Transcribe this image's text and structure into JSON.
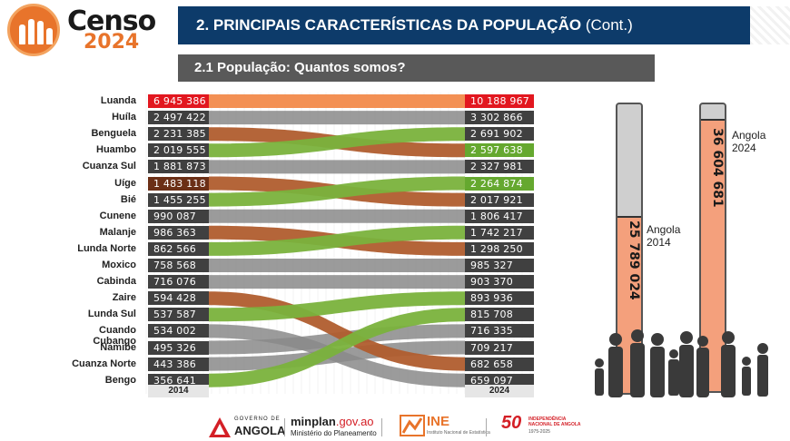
{
  "logo": {
    "word": "Censo",
    "year": "2024"
  },
  "header": {
    "title": "2. PRINCIPAIS CARACTERÍSTICAS DA POPULAÇÃO",
    "title_suffix": "(Cont.)",
    "subtitle": "2.1 População: Quantos somos?"
  },
  "colors": {
    "navy": "#0d3b6a",
    "orange": "#f28a4b",
    "green": "#7ab23c",
    "brown": "#b05d2e",
    "gray": "#8a8a8a",
    "red": "#e2171f"
  },
  "chart_data": {
    "type": "slope",
    "x": [
      "2014",
      "2024"
    ],
    "left_year": "2014",
    "right_year": "2024",
    "provinces_2014": [
      {
        "name": "Luanda",
        "value": "6 945 386"
      },
      {
        "name": "Huíla",
        "value": "2 497 422"
      },
      {
        "name": "Benguela",
        "value": "2 231 385"
      },
      {
        "name": "Huambo",
        "value": "2 019 555"
      },
      {
        "name": "Cuanza Sul",
        "value": "1 881 873"
      },
      {
        "name": "Uíge",
        "value": "1 483 118"
      },
      {
        "name": "Bié",
        "value": "1 455 255"
      },
      {
        "name": "Cunene",
        "value": "990 087"
      },
      {
        "name": "Malanje",
        "value": "986 363"
      },
      {
        "name": "Lunda Norte",
        "value": "862 566"
      },
      {
        "name": "Moxico",
        "value": "758 568"
      },
      {
        "name": "Cabinda",
        "value": "716 076"
      },
      {
        "name": "Zaire",
        "value": "594 428"
      },
      {
        "name": "Lunda Sul",
        "value": "537 587"
      },
      {
        "name": "Cuando Cubango",
        "value": "534 002"
      },
      {
        "name": "Namibe",
        "value": "495 326"
      },
      {
        "name": "Cuanza Norte",
        "value": "443 386"
      },
      {
        "name": "Bengo",
        "value": "356 641"
      }
    ],
    "values_2024": [
      "10 188 967",
      "3 302 866",
      "2 691 902",
      "2 597 638",
      "2 327 981",
      "2 264 874",
      "2 017 921",
      "1 806 417",
      "1 742 217",
      "1 298 250",
      "985 327",
      "903 370",
      "893 936",
      "815 708",
      "716 335",
      "709 217",
      "682 658",
      "659 097"
    ],
    "flows": [
      {
        "from": 0,
        "to": 0,
        "color": "orange"
      },
      {
        "from": 1,
        "to": 1,
        "color": "gray"
      },
      {
        "from": 2,
        "to": 3,
        "color": "brown"
      },
      {
        "from": 3,
        "to": 2,
        "color": "green"
      },
      {
        "from": 4,
        "to": 4,
        "color": "gray"
      },
      {
        "from": 5,
        "to": 6,
        "color": "brown"
      },
      {
        "from": 6,
        "to": 5,
        "color": "green"
      },
      {
        "from": 7,
        "to": 7,
        "color": "gray"
      },
      {
        "from": 8,
        "to": 9,
        "color": "brown"
      },
      {
        "from": 9,
        "to": 8,
        "color": "green"
      },
      {
        "from": 10,
        "to": 10,
        "color": "gray"
      },
      {
        "from": 11,
        "to": 11,
        "color": "gray"
      },
      {
        "from": 12,
        "to": 16,
        "color": "brown"
      },
      {
        "from": 13,
        "to": 12,
        "color": "green"
      },
      {
        "from": 14,
        "to": 17,
        "color": "gray"
      },
      {
        "from": 15,
        "to": 14,
        "color": "gray"
      },
      {
        "from": 16,
        "to": 15,
        "color": "gray"
      },
      {
        "from": 17,
        "to": 13,
        "color": "green"
      }
    ],
    "left_highlight": {
      "0": "red",
      "5": "brown"
    },
    "right_highlight": {
      "0": "red",
      "3": "green",
      "5": "green"
    }
  },
  "totals": {
    "label_2014": "Angola",
    "year_2014": "2014",
    "value_2014": "25 789 024",
    "label_2024": "Angola",
    "year_2024": "2024",
    "value_2024": "36 604 681"
  },
  "footer": {
    "gov_small": "GOVERNO DE",
    "gov_big": "ANGOLA",
    "minplan_a": "minplan",
    "minplan_b": ".gov.ao",
    "ministry": "Ministério do Planeamento",
    "ine": "INE",
    "ine_sub": "Instituto Nacional de Estatística",
    "indep_num": "50",
    "indep_text": "INDEPENDÊNCIA NACIONAL DE ANGOLA",
    "indep_years": "1975-2025"
  }
}
